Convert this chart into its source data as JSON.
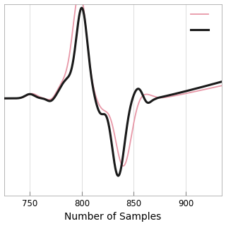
{
  "xlabel": "Number of Samples",
  "xlim": [
    725,
    935
  ],
  "original_color": "#E898A8",
  "denoised_color": "#1A1A1A",
  "original_linewidth": 1.3,
  "denoised_linewidth": 2.2,
  "background_color": "#FFFFFF",
  "grid_color": "#D0D0D0",
  "grid_linewidth": 0.5,
  "xticks": [
    750,
    800,
    850,
    900
  ],
  "xlabel_fontsize": 10
}
